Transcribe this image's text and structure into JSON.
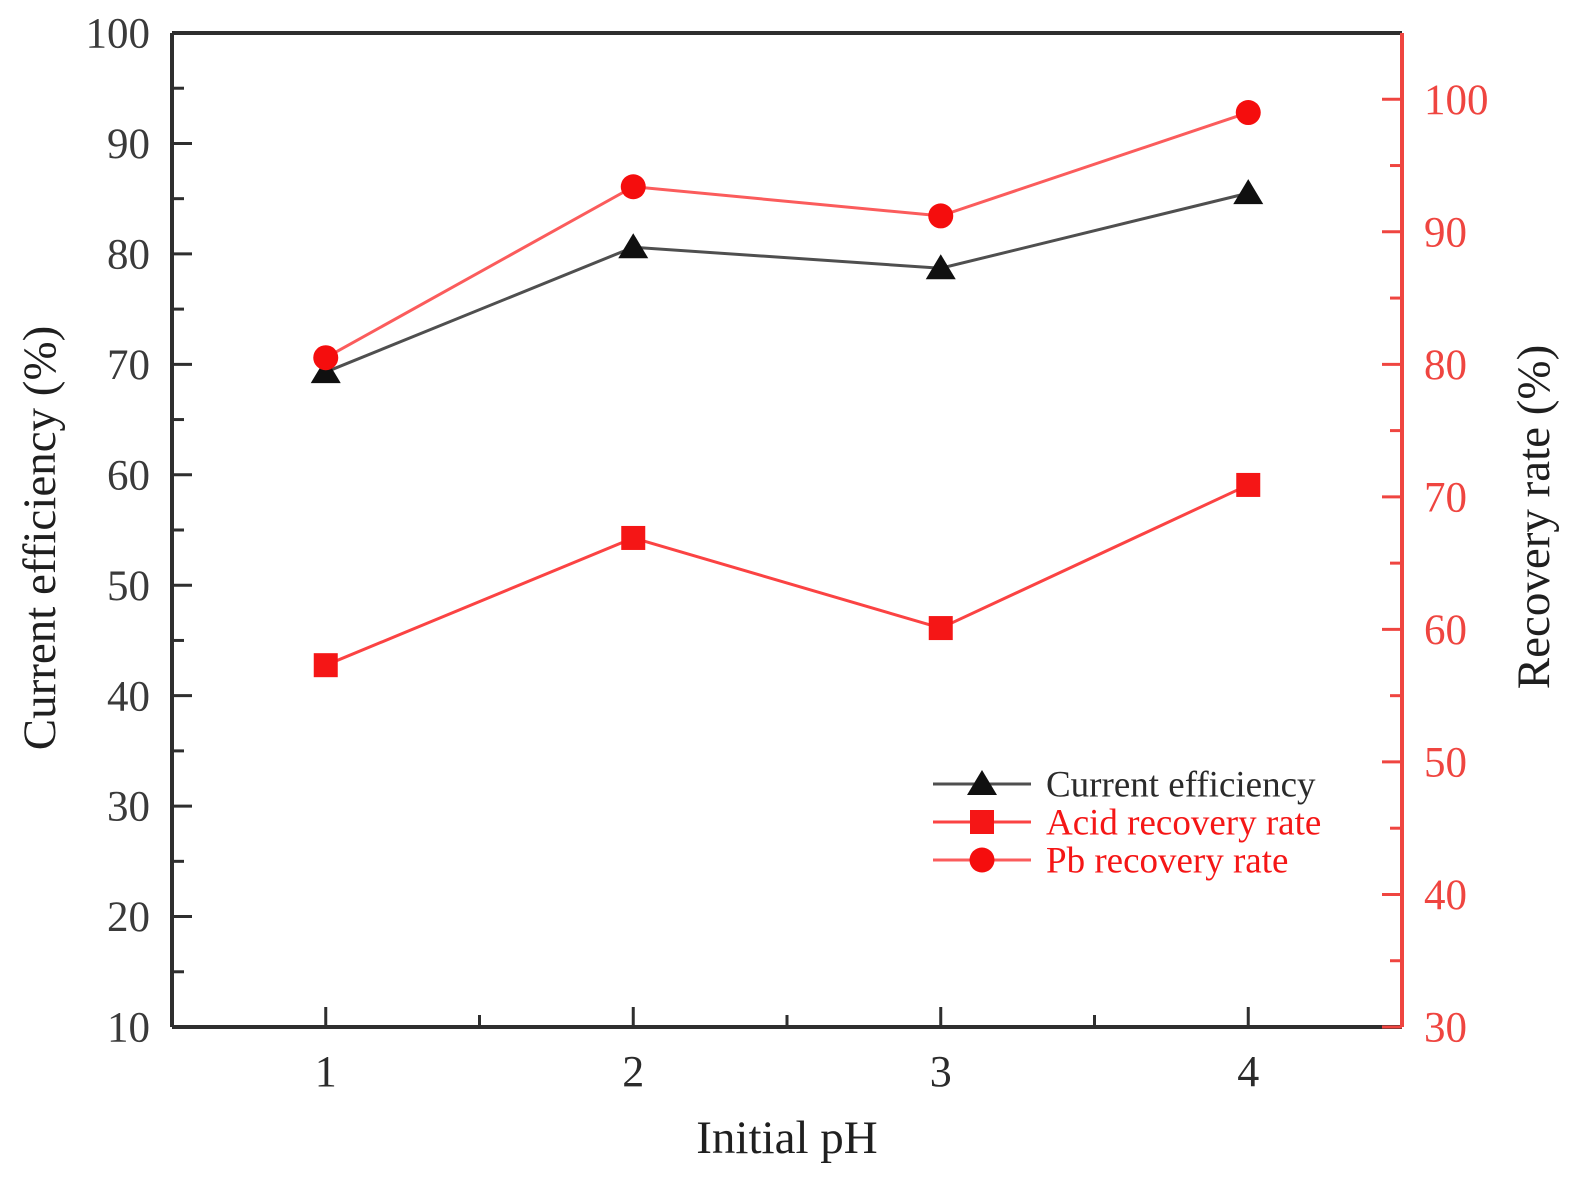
{
  "chart_data": {
    "type": "line",
    "title": "",
    "xlabel": "Initial pH",
    "ylabel_left": "Current efficiency (%)",
    "ylabel_right": "Recovery rate (%)",
    "x": [
      1,
      2,
      3,
      4
    ],
    "xlim": [
      0.5,
      4.5
    ],
    "x_tick_labels": [
      "1",
      "2",
      "3",
      "4"
    ],
    "x_minor_ticks": [
      1.5,
      2.5,
      3.5
    ],
    "left_axis": {
      "range": [
        10,
        100
      ],
      "ticks": [
        100,
        90,
        80,
        70,
        60,
        50,
        40,
        30,
        20,
        10
      ],
      "minor_ticks": [
        95,
        85,
        75,
        65,
        55,
        45,
        35,
        25,
        15
      ],
      "axis_color": "#2e2e2e",
      "label_color": "#3a3a3a"
    },
    "right_axis": {
      "range": [
        30,
        105
      ],
      "ticks": [
        100,
        90,
        80,
        70,
        60,
        50,
        40,
        30
      ],
      "minor_ticks": [
        95,
        85,
        75,
        65,
        55,
        45,
        35
      ],
      "axis_color": "#ef4540",
      "label_color": "#ef4540"
    },
    "series": [
      {
        "name": "Current efficiency",
        "axis": "left",
        "marker": "triangle",
        "line_color": "#4f4f4f",
        "marker_color": "#101010",
        "label_color": "#2b2b2b",
        "values": [
          69.3,
          80.6,
          78.7,
          85.5
        ]
      },
      {
        "name": "Acid recovery rate",
        "axis": "right",
        "marker": "square",
        "line_color": "#fb4343",
        "marker_color": "#f51616",
        "label_color": "#f51616",
        "values": [
          57.3,
          66.9,
          60.1,
          70.9
        ]
      },
      {
        "name": "Pb recovery rate",
        "axis": "right",
        "marker": "circle",
        "line_color": "#fb5c5c",
        "marker_color": "#f50d0d",
        "label_color": "#f51616",
        "values": [
          80.5,
          93.4,
          91.2,
          99.0
        ]
      }
    ],
    "legend": {
      "position": "inside-lower-right",
      "items": [
        "Current efficiency",
        "Acid recovery rate",
        "Pb recovery rate"
      ]
    },
    "grid": false
  }
}
